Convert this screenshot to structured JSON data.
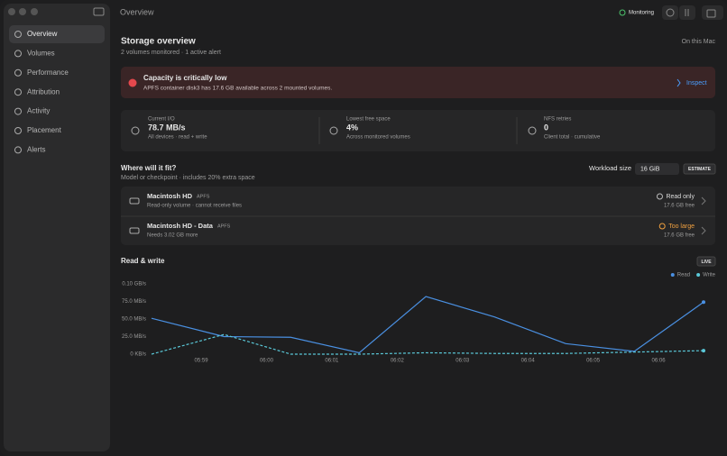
{
  "window": {
    "title": "Overview",
    "status": "Monitoring"
  },
  "sidebar": {
    "items": [
      "Overview",
      "Volumes",
      "Performance",
      "Attribution",
      "Activity",
      "Placement",
      "Alerts"
    ]
  },
  "header": {
    "title": "Storage overview",
    "subtitle": "2 volumes monitored · 1 active alert",
    "scope": "On this Mac"
  },
  "alert": {
    "title": "Capacity is critically low",
    "message": "APFS container disk3 has 17.6 GB available across 2 mounted volumes.",
    "action": "Inspect"
  },
  "stats": [
    {
      "label": "Current I/O",
      "value": "78.7 MB/s",
      "note": "All devices · read + write"
    },
    {
      "label": "Lowest free space",
      "value": "4%",
      "note": "Across monitored volumes"
    },
    {
      "label": "NFS retries",
      "value": "0",
      "note": "Client total · cumulative"
    }
  ],
  "fit": {
    "title": "Where will it fit?",
    "subtitle": "Model or checkpoint · includes 20% extra space",
    "workload_label": "Workload size",
    "workload_value": "16 GiB",
    "button": "ESTIMATE",
    "volumes": [
      {
        "name": "Macintosh HD",
        "format": "APFS",
        "detail": "Read-only volume · cannot receive files",
        "status": "Read only",
        "free": "17.6 GB free"
      },
      {
        "name": "Macintosh HD - Data",
        "format": "APFS",
        "detail": "Needs 3.02 GB more",
        "status": "Too large",
        "free": "17.6 GB free"
      }
    ]
  },
  "chart_data": {
    "type": "line",
    "title": "Read & write",
    "badge": "LIVE",
    "legend": "top-right",
    "x": [
      358.24,
      359.35,
      360.37,
      361.42,
      362.44,
      363.49,
      364.58,
      365.63,
      366.69
    ],
    "series": [
      {
        "name": "Read",
        "color": "#4a90e2",
        "values": [
          51,
          25,
          24,
          2,
          82,
          53,
          15,
          4,
          74
        ]
      },
      {
        "name": "Write",
        "color": "#5ac8d8",
        "values": [
          0,
          28,
          0,
          0,
          2,
          1,
          1,
          3,
          5
        ]
      }
    ],
    "xlim": [
      358.24,
      366.69
    ],
    "xticks": [
      {
        "value": 359,
        "label": "05:59"
      },
      {
        "value": 360,
        "label": "06:00"
      },
      {
        "value": 361,
        "label": "06:01"
      },
      {
        "value": 362,
        "label": "06:02"
      },
      {
        "value": 363,
        "label": "06:03"
      },
      {
        "value": 364,
        "label": "06:04"
      },
      {
        "value": 365,
        "label": "06:05"
      },
      {
        "value": 366,
        "label": "06:06"
      }
    ],
    "ylim": [
      0,
      100
    ],
    "yticks": [
      {
        "value": 0,
        "label": "0 KB/s"
      },
      {
        "value": 25,
        "label": "25.0 MB/s"
      },
      {
        "value": 50,
        "label": "50.0 MB/s"
      },
      {
        "value": 75,
        "label": "75.0 MB/s"
      },
      {
        "value": 100,
        "label": "0.10 GB/s"
      }
    ]
  }
}
